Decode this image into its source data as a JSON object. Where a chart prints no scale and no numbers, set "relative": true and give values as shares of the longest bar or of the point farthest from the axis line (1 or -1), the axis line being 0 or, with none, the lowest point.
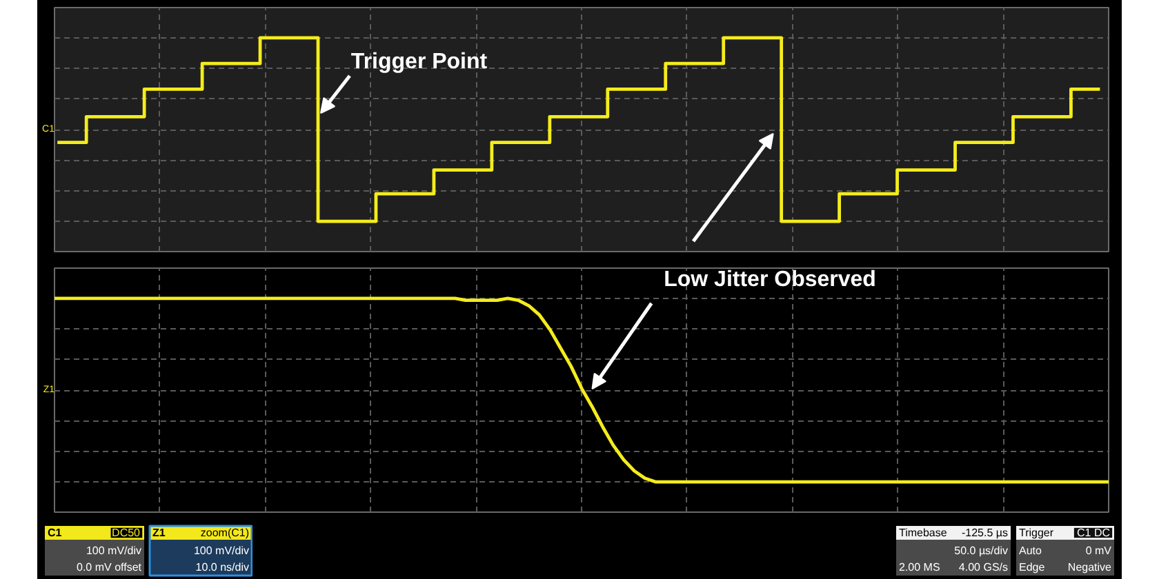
{
  "chart_data": [
    {
      "type": "step",
      "ylabel": "C1",
      "categories": [
        null,
        null,
        null,
        null,
        null,
        null,
        null,
        null,
        null,
        null,
        null,
        null,
        null,
        null,
        null,
        null,
        null,
        null,
        null
      ],
      "series": [
        {
          "color": "#f4ec1c",
          "values": [
            0.43,
            0.57,
            0.72,
            0.86,
            1,
            0,
            0.15,
            0.28,
            0.43,
            0.57,
            0.72,
            0.86,
            1,
            0,
            0.15,
            0.28,
            0.43,
            0.57,
            0.72
          ]
        }
      ],
      "relative": true,
      "grid": true,
      "tick_labels": false,
      "annotations": [
        "Trigger Point"
      ]
    },
    {
      "type": "line",
      "ylabel": "Z1",
      "categories": [
        null,
        null,
        null,
        null,
        null,
        null,
        null,
        null,
        null,
        null,
        null,
        null,
        null,
        null,
        null,
        null,
        null,
        null,
        null,
        null,
        null,
        null,
        null,
        null,
        null,
        null,
        null,
        null,
        null,
        null,
        null,
        null,
        null,
        null,
        null,
        null,
        null,
        null,
        null,
        null,
        null,
        null,
        null,
        null,
        null,
        null,
        null,
        null,
        null,
        null,
        null,
        null,
        null,
        null,
        null,
        null,
        null,
        null,
        null,
        null,
        null,
        null,
        null,
        null,
        null,
        null,
        null,
        null,
        null,
        null,
        null,
        null,
        null,
        null,
        null,
        null,
        null,
        null,
        null,
        null,
        null,
        null,
        null,
        null,
        null,
        null,
        null,
        null,
        null,
        null,
        null,
        null,
        null,
        null,
        null,
        null,
        null,
        null,
        null,
        null,
        null
      ],
      "series": [
        {
          "color": "#f4ec1c",
          "values": [
            1,
            1,
            1,
            1,
            1,
            1,
            1,
            1,
            1,
            1,
            1,
            1,
            1,
            1,
            1,
            1,
            1,
            1,
            1,
            1,
            1,
            1,
            1,
            1,
            1,
            1,
            1,
            1,
            1,
            1,
            1,
            1,
            1,
            1,
            1,
            1,
            1,
            1,
            1,
            0.99,
            0.99,
            0.99,
            0.99,
            1,
            0.99,
            0.96,
            0.91,
            0.83,
            0.73,
            0.63,
            0.51,
            0.41,
            0.3,
            0.2,
            0.12,
            0.06,
            0.02,
            0,
            0,
            0,
            0,
            0,
            0,
            0,
            0,
            0,
            0,
            0,
            0,
            0,
            0,
            0,
            0,
            0,
            0,
            0,
            0,
            0,
            0,
            0,
            0,
            0,
            0,
            0,
            0,
            0,
            0,
            0,
            0,
            0,
            0,
            0,
            0,
            0,
            0,
            0,
            0,
            0,
            0,
            0,
            0
          ]
        }
      ],
      "relative": true,
      "grid": true,
      "tick_labels": false,
      "annotations": [
        "Low Jitter Observed"
      ]
    },
    {
      "type": "other",
      "annotations": [
        "C1",
        "DC50",
        "100 mV/div",
        "0.0 mV offset"
      ]
    },
    {
      "type": "other",
      "annotations": [
        "Z1",
        "zoom(C1)",
        "100 mV/div",
        "10.0 ns/div"
      ]
    },
    {
      "type": "other",
      "annotations": [
        "Timebase",
        "-125.5 µs",
        "50.0 µs/div",
        "4.00 GS/s",
        "2.00 MS"
      ]
    },
    {
      "type": "other",
      "annotations": [
        "Trigger",
        "C1 DC",
        "0 mV",
        "Negative",
        "Edge",
        "Auto"
      ]
    }
  ]
}
